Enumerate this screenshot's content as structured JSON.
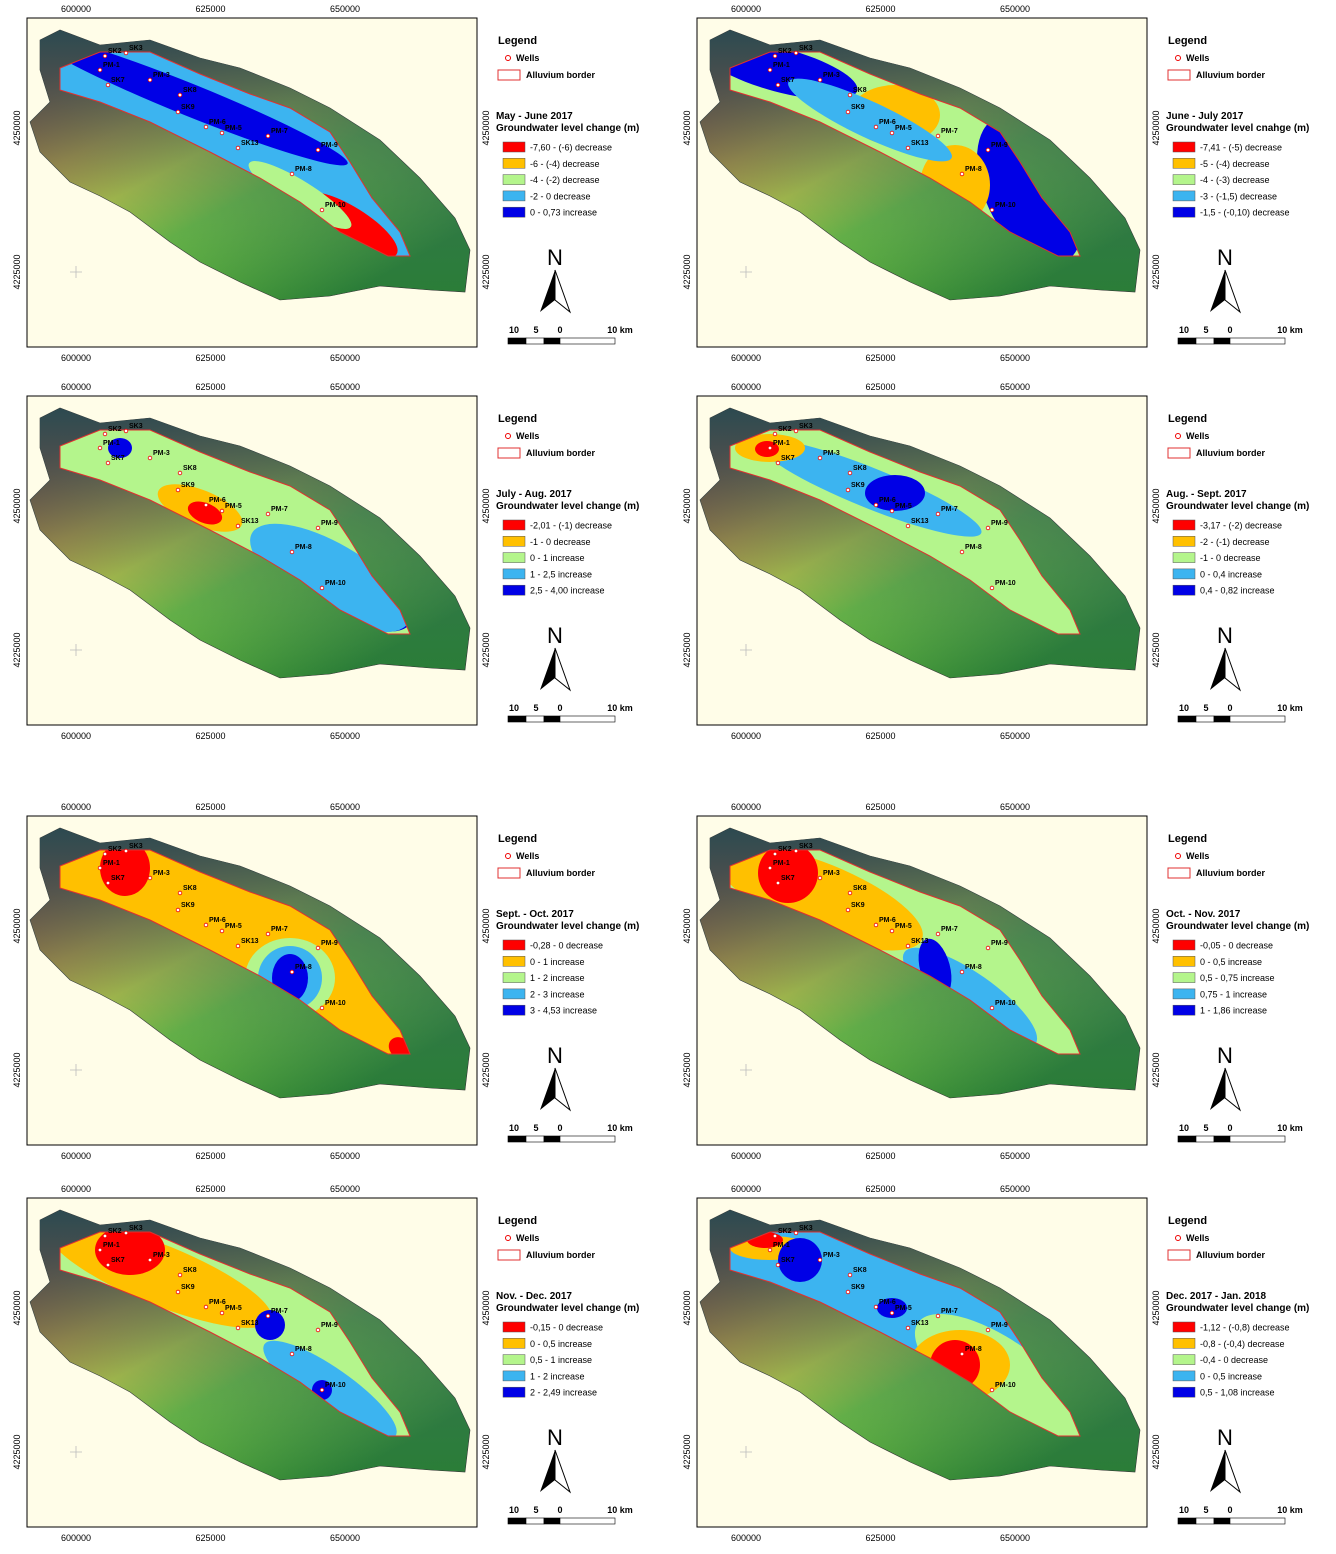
{
  "common": {
    "legend_heading": "Legend",
    "wells_label": "Wells",
    "border_label": "Alluvium border",
    "north": "N",
    "scale_labels": [
      "10",
      "5",
      "0",
      "10 km"
    ],
    "x_ticks": [
      600000,
      625000,
      650000
    ],
    "y_ticks": [
      4250000,
      4225000
    ],
    "class_colors": [
      "#ff0000",
      "#ffc000",
      "#b4f58c",
      "#3cb4f0",
      "#0000e6"
    ],
    "wells": [
      "SK2",
      "SK3",
      "PM-1",
      "SK7",
      "PM-3",
      "SK8",
      "SK9",
      "PM-6",
      "PM-5",
      "PM-7",
      "SK13",
      "PM-8",
      "PM-9",
      "PM-10"
    ]
  },
  "panels": [
    {
      "period": "May - June 2017",
      "subtitle": "Groundwater level change (m)",
      "classes": [
        "-7,60 - (-6) decrease",
        "-6 - (-4) decrease",
        "-4 - (-2) decrease",
        "-2 - 0 decrease",
        "0 - 0,73 increase"
      ]
    },
    {
      "period": "June - July 2017",
      "subtitle": "Groundwater level cnahge (m)",
      "classes": [
        "-7,41 - (-5) decrease",
        "-5 - (-4) decrease",
        "-4 - (-3) decrease",
        "-3 - (-1,5) decrease",
        "-1,5 - (-0,10) decrease"
      ]
    },
    {
      "period": "July - Aug. 2017",
      "subtitle": "Groundwater level change (m)",
      "classes": [
        "-2,01 - (-1) decrease",
        "-1 - 0 decrease",
        "0 - 1 increase",
        "1 - 2,5 increase",
        "2,5 - 4,00 increase"
      ]
    },
    {
      "period": "Aug. - Sept. 2017",
      "subtitle": "Groundwater level change (m)",
      "classes": [
        "-3,17 - (-2) decrease",
        "-2 - (-1) decrease",
        "-1 - 0 decrease",
        "0 - 0,4 increase",
        "0,4 - 0,82 increase"
      ]
    },
    {
      "period": "Sept. - Oct. 2017",
      "subtitle": "Groundwater level change (m)",
      "classes": [
        "-0,28 - 0 decrease",
        "0 - 1 increase",
        "1 - 2 increase",
        "2 - 3 increase",
        "3 - 4,53 increase"
      ]
    },
    {
      "period": "Oct. - Nov. 2017",
      "subtitle": "Groundwater level change (m)",
      "classes": [
        "-0,05 - 0 decrease",
        "0 - 0,5 increase",
        "0,5 - 0,75 increase",
        "0,75 - 1 increase",
        "1 - 1,86 increase"
      ]
    },
    {
      "period": "Nov. - Dec. 2017",
      "subtitle": "Groundwater level change (m)",
      "classes": [
        "-0,15 - 0 decrease",
        "0 - 0,5 increase",
        "0,5 - 1 increase",
        "1 - 2 increase",
        "2 - 2,49 increase"
      ]
    },
    {
      "period": "Dec. 2017 - Jan. 2018",
      "subtitle": "Groundwater level change (m)",
      "classes": [
        "-1,12 - (-0,8) decrease",
        "-0,8 - (-0,4) decrease",
        "-0,4 - 0 decrease",
        "0 - 0,5 increase",
        "0,5 - 1,08 increase"
      ]
    }
  ]
}
